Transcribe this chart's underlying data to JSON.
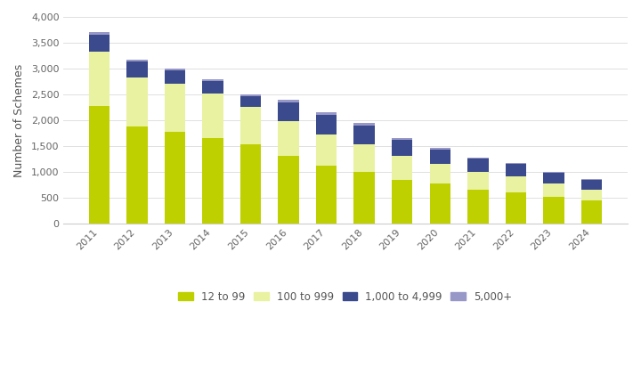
{
  "years": [
    "2011",
    "2012",
    "2013",
    "2014",
    "2015",
    "2016",
    "2017",
    "2018",
    "2019",
    "2020",
    "2021",
    "2022",
    "2023",
    "2024"
  ],
  "seg1_12to99": [
    2270,
    1880,
    1770,
    1650,
    1530,
    1310,
    1120,
    1000,
    840,
    780,
    660,
    600,
    510,
    440
  ],
  "seg2_100to999": [
    1050,
    950,
    930,
    870,
    730,
    670,
    600,
    540,
    470,
    370,
    340,
    310,
    260,
    210
  ],
  "seg3_1000to4999": [
    340,
    300,
    260,
    230,
    200,
    370,
    390,
    360,
    310,
    280,
    250,
    240,
    210,
    195
  ],
  "seg4_5000plus": [
    40,
    40,
    40,
    35,
    35,
    50,
    50,
    40,
    35,
    30,
    30,
    30,
    25,
    20
  ],
  "colors": {
    "12to99": "#bfd000",
    "100to999": "#e8f2a0",
    "1000to4999": "#3b4a8c",
    "5000plus": "#9898c8"
  },
  "ylabel": "Number of Schemes",
  "ylim": [
    0,
    4000
  ],
  "yticks": [
    0,
    500,
    1000,
    1500,
    2000,
    2500,
    3000,
    3500,
    4000
  ],
  "legend_labels": [
    "12 to 99",
    "100 to 999",
    "1,000 to 4,999",
    "5,000+"
  ],
  "background_color": "#ffffff",
  "grid_color": "#e0e0e0",
  "bar_width": 0.55
}
